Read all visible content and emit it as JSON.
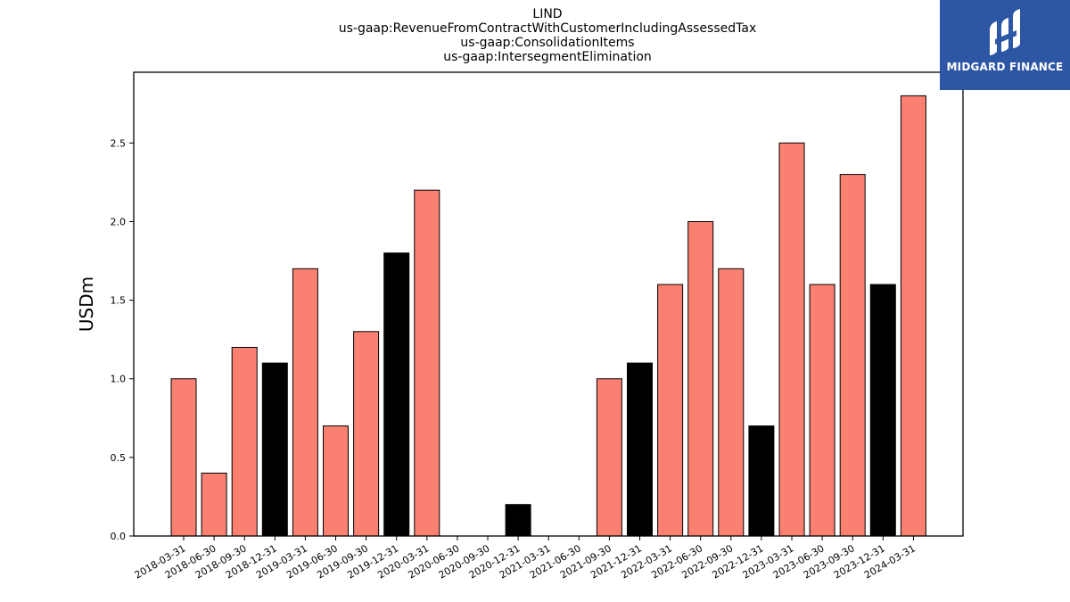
{
  "chart_data": {
    "type": "bar",
    "title_lines": [
      "LIND",
      "us-gaap:RevenueFromContractWithCustomerIncludingAssessedTax",
      "us-gaap:ConsolidationItems",
      "us-gaap:IntersegmentElimination"
    ],
    "ylabel": "USDm",
    "ylim": [
      0,
      2.95
    ],
    "yticks": [
      "0.0",
      "0.5",
      "1.0",
      "1.5",
      "2.0",
      "2.5"
    ],
    "categories": [
      "2018-03-31",
      "2018-06-30",
      "2018-09-30",
      "2018-12-31",
      "2019-03-31",
      "2019-06-30",
      "2019-09-30",
      "2019-12-31",
      "2020-03-31",
      "2020-06-30",
      "2020-09-30",
      "2020-12-31",
      "2021-03-31",
      "2021-06-30",
      "2021-09-30",
      "2021-12-31",
      "2022-03-31",
      "2022-06-30",
      "2022-09-30",
      "2022-12-31",
      "2023-03-31",
      "2023-06-30",
      "2023-09-30",
      "2023-12-31",
      "2024-03-31"
    ],
    "values": [
      1.0,
      0.4,
      1.2,
      1.1,
      1.7,
      0.7,
      1.3,
      1.8,
      2.2,
      0,
      0,
      0.2,
      0,
      0,
      1.0,
      1.1,
      1.6,
      2.0,
      1.7,
      0.7,
      2.5,
      1.6,
      2.3,
      1.6,
      2.8
    ],
    "bar_colors": [
      "#fa8072",
      "#fa8072",
      "#fa8072",
      "#000000",
      "#fa8072",
      "#fa8072",
      "#fa8072",
      "#000000",
      "#fa8072",
      "#fa8072",
      "#fa8072",
      "#000000",
      "#fa8072",
      "#fa8072",
      "#fa8072",
      "#000000",
      "#fa8072",
      "#fa8072",
      "#fa8072",
      "#000000",
      "#fa8072",
      "#fa8072",
      "#fa8072",
      "#000000",
      "#fa8072"
    ],
    "grid": false
  },
  "logo": {
    "text": "MIDGARD FINANCE",
    "background": "#2d56a5",
    "icon": "midgard-logo-mark"
  }
}
